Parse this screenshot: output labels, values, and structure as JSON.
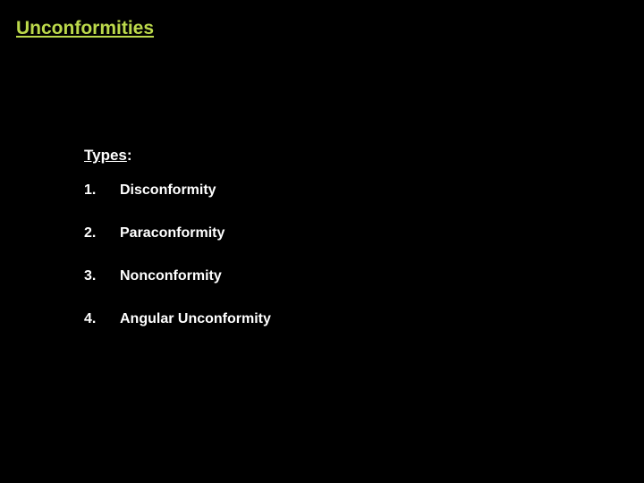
{
  "slide": {
    "title": "Unconformities",
    "title_color": "#bcd94b",
    "subheading_prefix": "Types",
    "subheading_suffix": ":",
    "items": [
      {
        "num": "1.",
        "label": "Disconformity"
      },
      {
        "num": "2.",
        "label": "Paraconformity"
      },
      {
        "num": "3.",
        "label": "Nonconformity"
      },
      {
        "num": "4.",
        "label": "Angular Unconformity"
      }
    ],
    "background_color": "#000000",
    "text_color": "#ffffff",
    "title_fontsize": 21,
    "body_fontsize": 16,
    "subheading_fontsize": 17
  }
}
